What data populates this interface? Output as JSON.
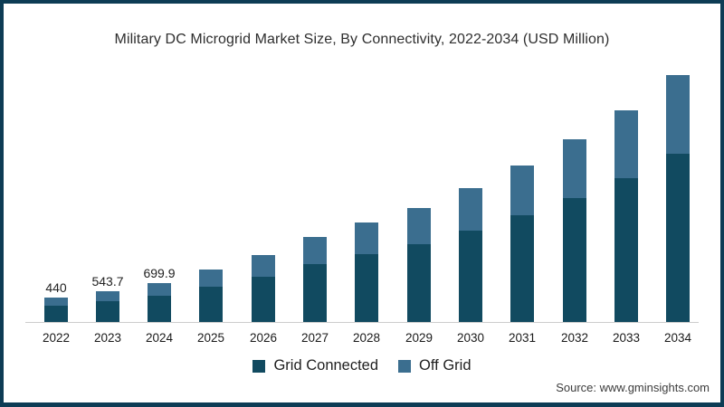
{
  "title": "Military DC Microgrid Market Size, By Connectivity, 2022-2034 (USD Million)",
  "source": "Source: www.gminsights.com",
  "colors": {
    "frame": "#0d3c55",
    "grid_connected": "#114a60",
    "off_grid": "#3b6e8f",
    "axis": "#cccccc"
  },
  "chart_data": {
    "type": "bar",
    "stacked": true,
    "title": "Military DC Microgrid Market Size, By Connectivity, 2022-2034 (USD Million)",
    "xlabel": "",
    "ylabel": "USD Million",
    "ylim": [
      0,
      4800
    ],
    "grid": false,
    "legend_position": "bottom",
    "categories": [
      "2022",
      "2023",
      "2024",
      "2025",
      "2026",
      "2027",
      "2028",
      "2029",
      "2030",
      "2031",
      "2032",
      "2033",
      "2034"
    ],
    "series": [
      {
        "name": "Grid Connected",
        "color": "#114a60",
        "values": [
          299,
          369.7,
          475.9,
          639,
          816,
          1034,
          1210,
          1387,
          1632,
          1904,
          2224,
          2577,
          3006
        ]
      },
      {
        "name": "Off Grid",
        "color": "#3b6e8f",
        "values": [
          141,
          174,
          224,
          301,
          384,
          486,
          570,
          653,
          768,
          896,
          1046,
          1213,
          1414
        ]
      }
    ],
    "totals": [
      440,
      543.7,
      699.9,
      940,
      1200,
      1520,
      1780,
      2040,
      2400,
      2800,
      3270,
      3790,
      4420
    ],
    "value_labels": [
      "440",
      "543.7",
      "699.9",
      "",
      "",
      "",
      "",
      "",
      "",
      "",
      "",
      "",
      ""
    ]
  }
}
